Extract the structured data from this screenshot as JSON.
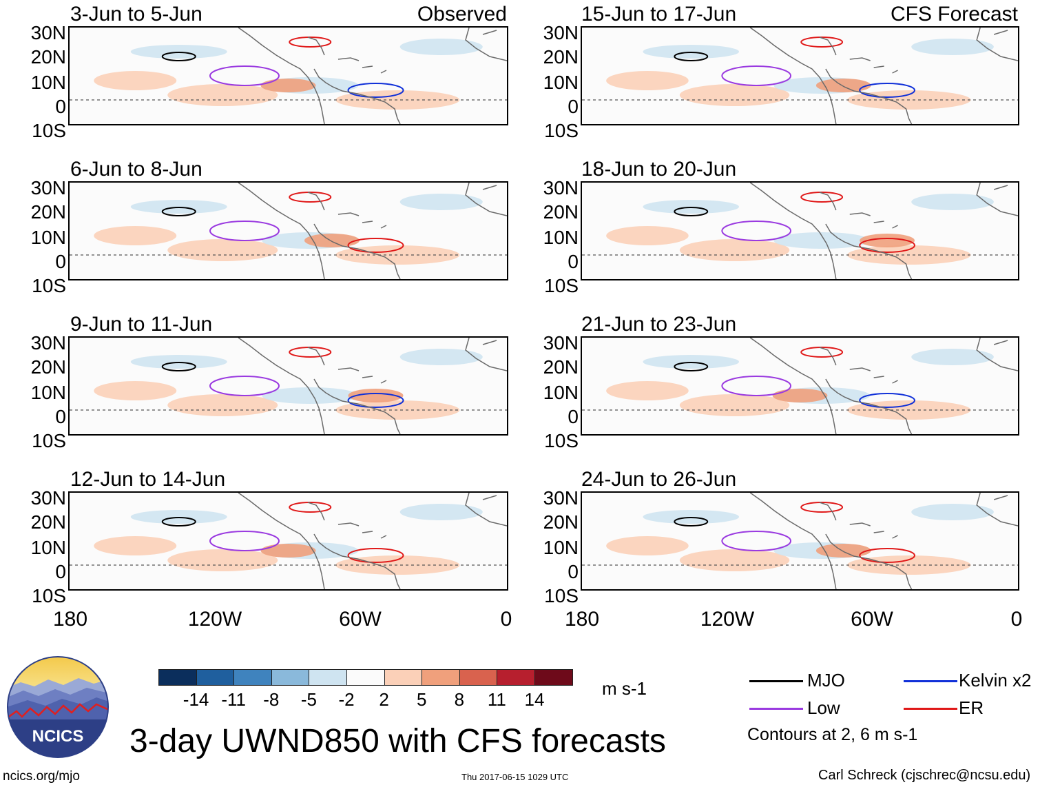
{
  "header": {
    "observed_label": "Observed",
    "forecast_label": "CFS Forecast"
  },
  "panels_left": [
    {
      "period": "3-Jun to 5-Jun"
    },
    {
      "period": "6-Jun to 8-Jun"
    },
    {
      "period": "9-Jun to 11-Jun"
    },
    {
      "period": "12-Jun to 14-Jun"
    }
  ],
  "panels_right": [
    {
      "period": "15-Jun to 17-Jun"
    },
    {
      "period": "18-Jun to 20-Jun"
    },
    {
      "period": "21-Jun to 23-Jun"
    },
    {
      "period": "24-Jun to 26-Jun"
    }
  ],
  "axes": {
    "lat_labels": [
      "30N",
      "20N",
      "10N",
      "0",
      "10S"
    ],
    "lon_labels": [
      "180",
      "120W",
      "60W",
      "0"
    ]
  },
  "colorbar": {
    "ticks": [
      "-14",
      "-11",
      "-8",
      "-5",
      "-2",
      "2",
      "5",
      "8",
      "11",
      "14"
    ],
    "colors": [
      "#0b2e5c",
      "#1f5f9e",
      "#3f83be",
      "#8ab9db",
      "#cfe4f1",
      "#fbfbfb",
      "#fbd0b8",
      "#f0a07c",
      "#d9624e",
      "#b71f2e",
      "#6e0a1a"
    ],
    "units": "m s-1"
  },
  "legend": {
    "items": [
      {
        "label": "MJO",
        "color": "#000000"
      },
      {
        "label": "Kelvin x2",
        "color": "#1030d8"
      },
      {
        "label": "Low",
        "color": "#9a3ae0"
      },
      {
        "label": "ER",
        "color": "#e01818"
      }
    ],
    "note": "Contours at 2, 6 m s-1"
  },
  "title": "3-day UWND850 with CFS forecasts",
  "footer": {
    "site": "ncics.org/mjo",
    "timestamp": "Thu 2017-06-15 1029 UTC",
    "credit": "Carl Schreck (cjschrec@ncsu.edu)"
  },
  "logo": {
    "text": "NCICS"
  }
}
